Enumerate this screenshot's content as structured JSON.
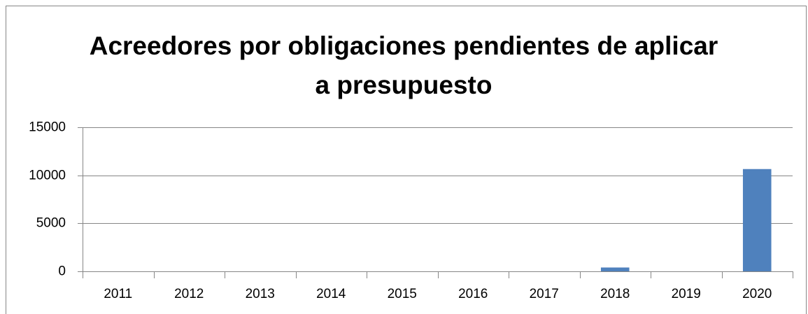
{
  "chart_data": {
    "type": "bar",
    "title": "Acreedores por obligaciones pendientes de aplicar a presupuesto",
    "categories": [
      "2011",
      "2012",
      "2013",
      "2014",
      "2015",
      "2016",
      "2017",
      "2018",
      "2019",
      "2020"
    ],
    "values": [
      0,
      0,
      0,
      0,
      0,
      0,
      0,
      400,
      0,
      10650
    ],
    "color": "#4f81bd",
    "ylim": [
      0,
      15000
    ],
    "yticks": [
      0,
      5000,
      10000,
      15000
    ],
    "grid": true
  }
}
